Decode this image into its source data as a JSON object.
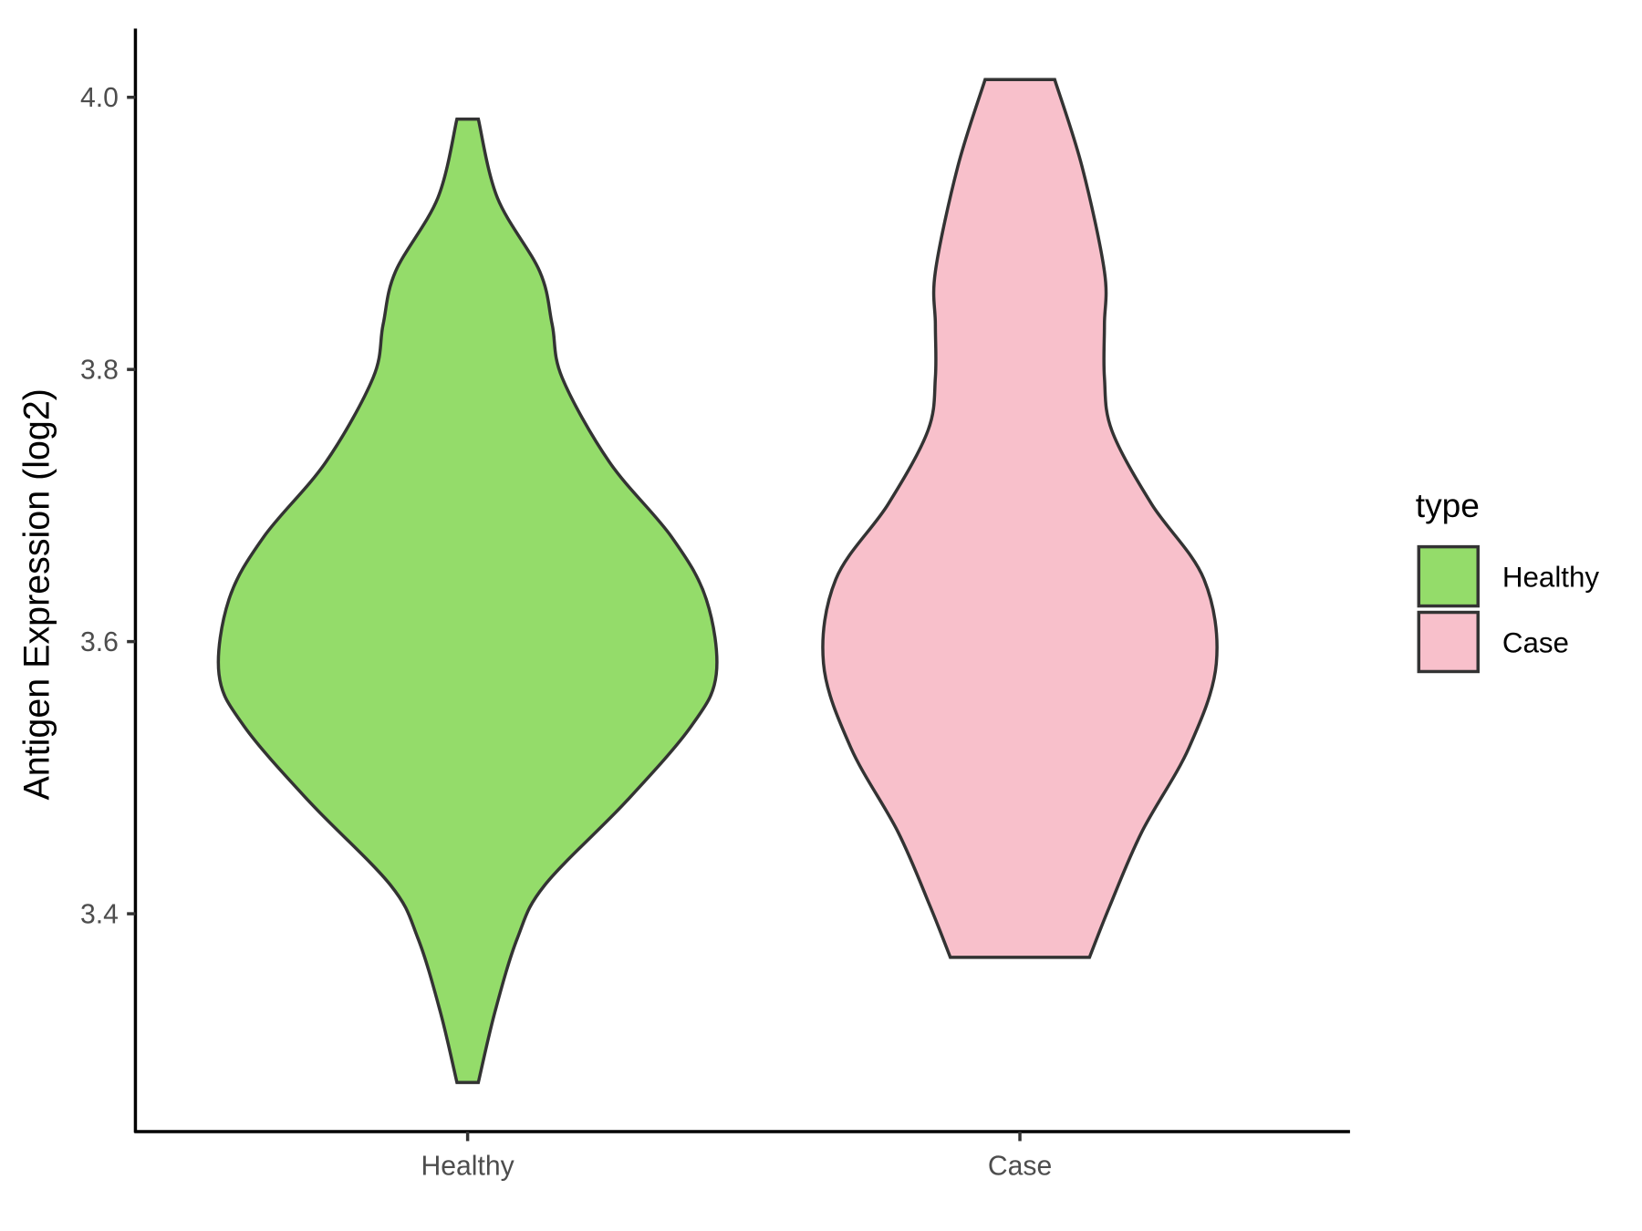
{
  "chart_data": {
    "type": "violin",
    "ylabel": "Antigen Expression (log2)",
    "xlabel": "",
    "categories": [
      "Healthy",
      "Case"
    ],
    "yticks": [
      "3.4",
      "3.6",
      "3.8",
      "4.0"
    ],
    "ylim": [
      3.24,
      4.05
    ],
    "grid": false,
    "legend": {
      "title": "type",
      "placement": "right",
      "entries": [
        "Healthy",
        "Case"
      ]
    },
    "colors": {
      "Healthy": "#94dc6a",
      "Case": "#f8c0cb",
      "outline": "#333333"
    },
    "series": [
      {
        "name": "Healthy",
        "min": 3.276,
        "max": 3.984,
        "density": [
          [
            3.984,
            0.043
          ],
          [
            3.926,
            0.12
          ],
          [
            3.872,
            0.29
          ],
          [
            3.833,
            0.34
          ],
          [
            3.794,
            0.38
          ],
          [
            3.732,
            0.57
          ],
          [
            3.677,
            0.82
          ],
          [
            3.631,
            0.96
          ],
          [
            3.576,
            1.0
          ],
          [
            3.538,
            0.9
          ],
          [
            3.483,
            0.64
          ],
          [
            3.421,
            0.31
          ],
          [
            3.382,
            0.2
          ],
          [
            3.328,
            0.11
          ],
          [
            3.276,
            0.043
          ]
        ]
      },
      {
        "name": "Case",
        "min": 3.368,
        "max": 4.013,
        "density": [
          [
            4.013,
            0.14
          ],
          [
            3.949,
            0.25
          ],
          [
            3.872,
            0.34
          ],
          [
            3.833,
            0.34
          ],
          [
            3.794,
            0.34
          ],
          [
            3.755,
            0.37
          ],
          [
            3.701,
            0.53
          ],
          [
            3.646,
            0.74
          ],
          [
            3.584,
            0.79
          ],
          [
            3.522,
            0.68
          ],
          [
            3.46,
            0.49
          ],
          [
            3.405,
            0.36
          ],
          [
            3.368,
            0.28
          ]
        ]
      }
    ]
  }
}
